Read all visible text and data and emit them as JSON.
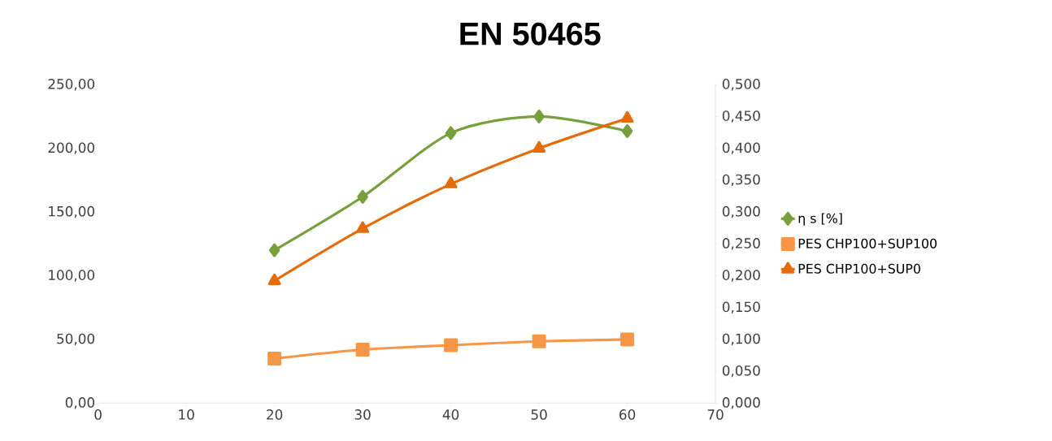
{
  "chart_data": {
    "type": "line",
    "title": "EN 50465",
    "x": [
      20,
      30,
      40,
      50,
      60
    ],
    "xlim": [
      0,
      70
    ],
    "xticks": [
      0,
      10,
      20,
      30,
      40,
      50,
      60,
      70
    ],
    "ylim": [
      0,
      250
    ],
    "yticks": [
      {
        "value": 0,
        "label": "0,00"
      },
      {
        "value": 50,
        "label": "50,00"
      },
      {
        "value": 100,
        "label": "100,00"
      },
      {
        "value": 150,
        "label": "150,00"
      },
      {
        "value": 200,
        "label": "200,00"
      },
      {
        "value": 250,
        "label": "250,00"
      }
    ],
    "y2lim": [
      0,
      0.5
    ],
    "y2ticks": [
      {
        "value": 0,
        "label": "0,000"
      },
      {
        "value": 0.05,
        "label": "0,050"
      },
      {
        "value": 0.1,
        "label": "0,100"
      },
      {
        "value": 0.15,
        "label": "0,150"
      },
      {
        "value": 0.2,
        "label": "0,200"
      },
      {
        "value": 0.25,
        "label": "0,250"
      },
      {
        "value": 0.3,
        "label": "0,300"
      },
      {
        "value": 0.35,
        "label": "0,350"
      },
      {
        "value": 0.4,
        "label": "0,400"
      },
      {
        "value": 0.45,
        "label": "0,450"
      },
      {
        "value": 0.5,
        "label": "0,500"
      }
    ],
    "legend": "right",
    "grid": false,
    "line_style": "solid",
    "series": [
      {
        "name": "η s [%]",
        "color": "#77a03c",
        "marker": "diamond",
        "values": [
          120,
          162,
          212,
          225,
          213.5
        ]
      },
      {
        "name": "PES CHP100+SUP100",
        "color": "#f79646",
        "marker": "square",
        "axis": "y2",
        "values": [
          0.07,
          0.084,
          0.091,
          0.097,
          0.1
        ]
      },
      {
        "name": "PES CHP100+SUP0",
        "color": "#e46c0a",
        "marker": "triangle",
        "axis": "y2",
        "values": [
          0.192,
          0.274,
          0.344,
          0.4,
          0.447
        ]
      }
    ]
  }
}
